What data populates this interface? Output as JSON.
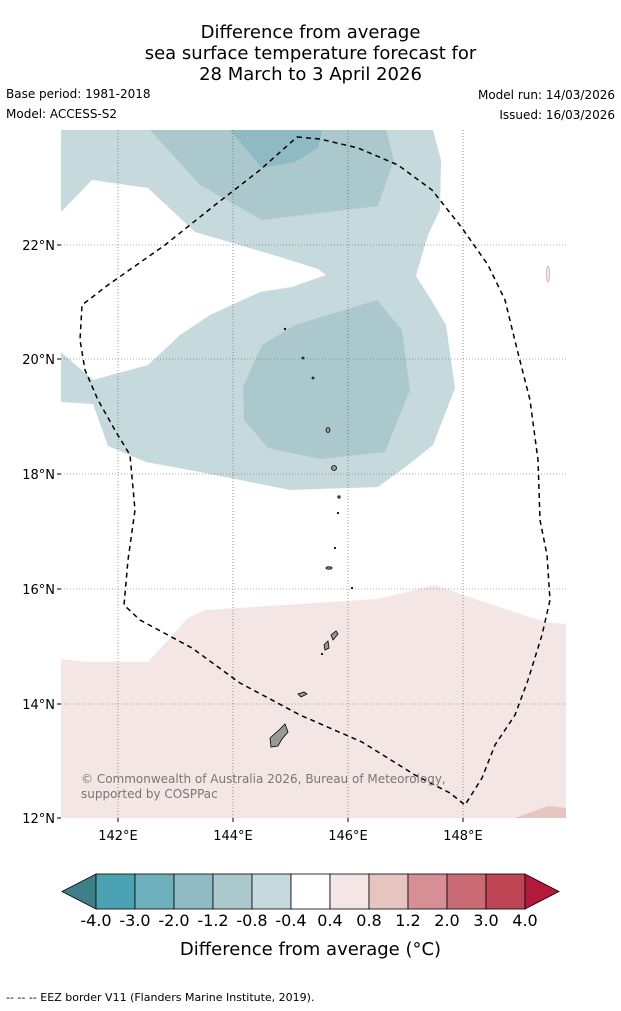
{
  "title": {
    "line1": "Difference from average",
    "line2": "sea surface temperature forecast for",
    "line3": "28 March to 3 April 2026"
  },
  "meta": {
    "base_period": "Base period: 1981-2018",
    "model": "Model: ACCESS-S2",
    "model_run": "Model run: 14/03/2026",
    "issued": "Issued: 16/03/2026"
  },
  "map": {
    "lat_labels": [
      "22°N",
      "20°N",
      "18°N",
      "16°N",
      "14°N",
      "12°N"
    ],
    "lon_labels": [
      "142°E",
      "144°E",
      "146°E",
      "148°E"
    ],
    "copyright": "© Commonwealth of Australia 2026, Bureau of Meteorology, supported by COSPPac"
  },
  "colorbar": {
    "labels": [
      "-4.0",
      "-3.0",
      "-2.0",
      "-1.2",
      "-0.8",
      "-0.4",
      "0.4",
      "0.8",
      "1.2",
      "2.0",
      "3.0",
      "4.0"
    ],
    "title": "Difference from average (°C)",
    "colors": {
      "under": "#3d8088",
      "bins": [
        "#4aa2b2",
        "#6eb0bb",
        "#8fbac3",
        "#abc9cd",
        "#c6d9dc",
        "#ffffff",
        "#f4e6e4",
        "#e6c4bf",
        "#d78f95",
        "#c96a74",
        "#bf4555"
      ],
      "over": "#b2193b"
    }
  },
  "legend": {
    "eez": "-- -- -- EEZ border V11 (Flanders Marine Institute, 2019)."
  }
}
